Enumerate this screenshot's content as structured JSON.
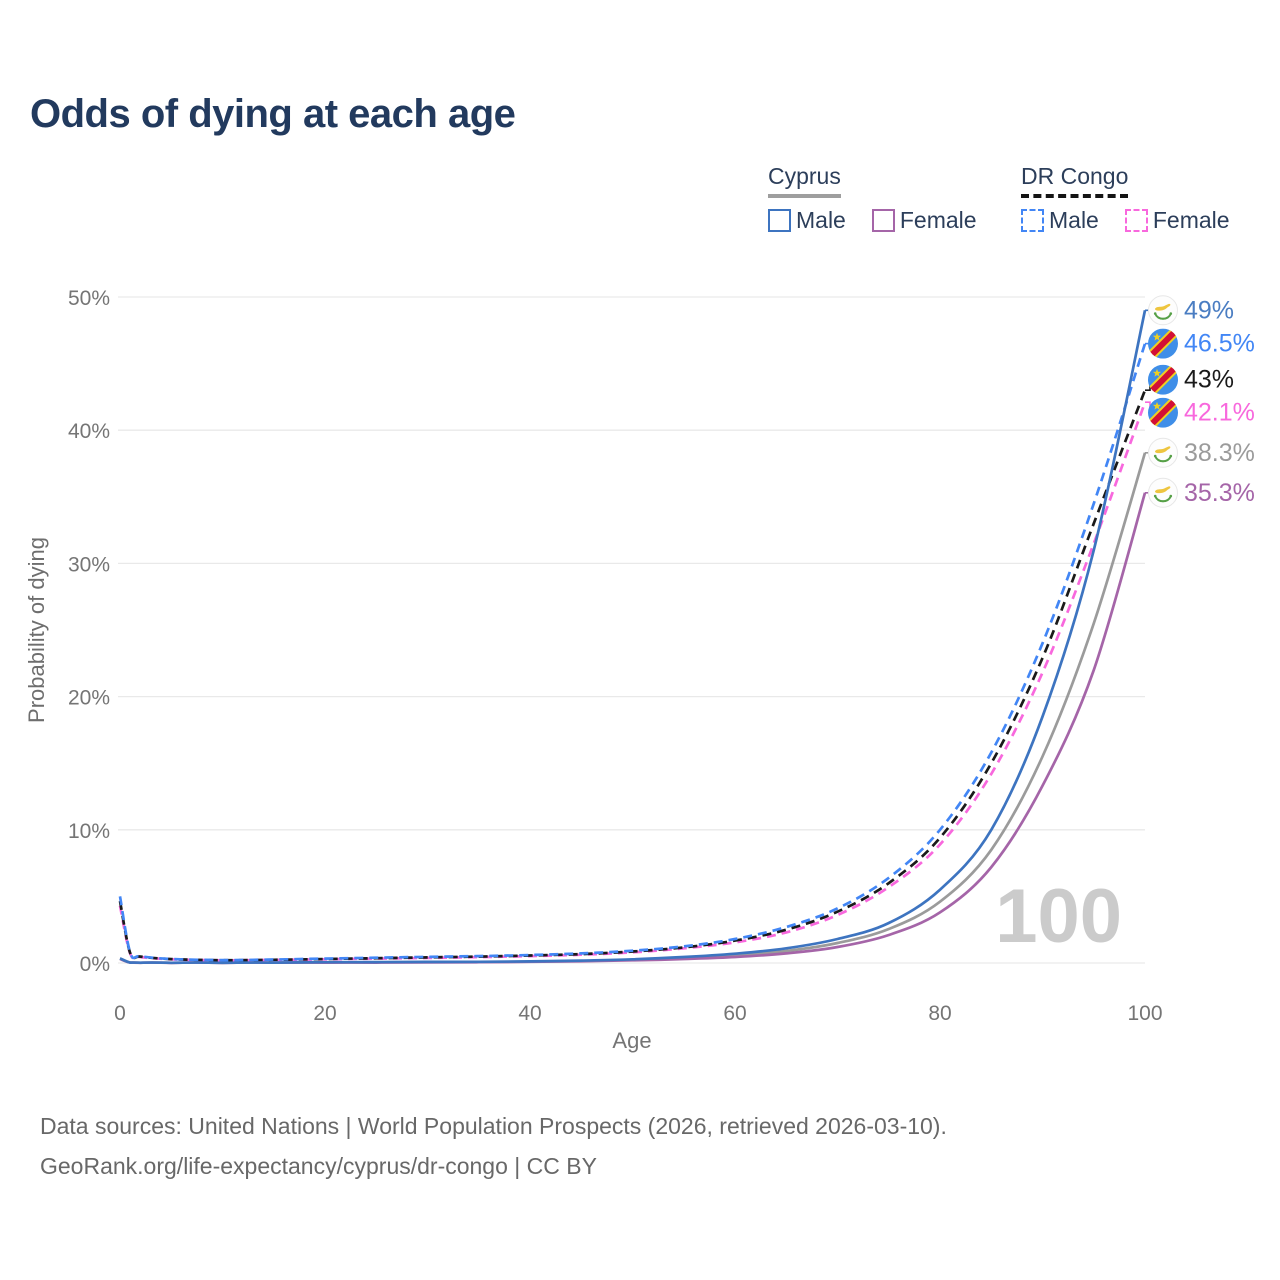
{
  "title": "Odds of dying at each age",
  "watermark": "100",
  "legend": {
    "groups": [
      {
        "label": "Cyprus",
        "style": "solid",
        "items": [
          {
            "label": "Male",
            "color": "#3d74c0"
          },
          {
            "label": "Female",
            "color": "#a565a8"
          }
        ]
      },
      {
        "label": "DR Congo",
        "style": "dashed",
        "items": [
          {
            "label": "Male",
            "color": "#4286f5"
          },
          {
            "label": "Female",
            "color": "#f868dd"
          }
        ]
      }
    ]
  },
  "footer": {
    "line1": "Data sources: United Nations | World Population Prospects (2026, retrieved 2026-03-10).",
    "line2": "GeoRank.org/life-expectancy/cyprus/dr-congo | CC BY"
  },
  "chart_data": {
    "type": "line",
    "title": "Odds of dying at each age",
    "xlabel": "Age",
    "ylabel": "Probability of dying",
    "xlim": [
      0,
      100
    ],
    "ylim": [
      0,
      50
    ],
    "grid": "horizontal",
    "legend_position": "top-right",
    "x_ticks": [
      0,
      20,
      40,
      60,
      80,
      100
    ],
    "x_tick_labels": [
      "0",
      "20",
      "40",
      "60",
      "80",
      "100"
    ],
    "y_ticks": [
      0,
      10,
      20,
      30,
      40,
      50
    ],
    "y_tick_labels": [
      "0%",
      "10%",
      "20%",
      "30%",
      "40%",
      "50%"
    ],
    "ages": [
      0,
      1,
      2,
      5,
      10,
      15,
      20,
      25,
      30,
      35,
      40,
      45,
      50,
      55,
      60,
      65,
      70,
      75,
      80,
      85,
      90,
      95,
      100
    ],
    "series": [
      {
        "name": "Cyprus Both sexes",
        "country": "Cyprus",
        "sex": "Both",
        "flag": "cyprus",
        "color": "#9b9b9b",
        "label_color": "#9b9b9b",
        "dash": false,
        "end_label": "38.3%",
        "values": [
          0.33,
          0.028,
          0.018,
          0.012,
          0.012,
          0.025,
          0.045,
          0.05,
          0.06,
          0.075,
          0.1,
          0.15,
          0.24,
          0.37,
          0.57,
          0.9,
          1.5,
          2.55,
          4.6,
          8.5,
          15.5,
          25.5,
          38.3
        ]
      },
      {
        "name": "Cyprus Female",
        "country": "Cyprus",
        "sex": "Female",
        "flag": "cyprus",
        "color": "#a565a8",
        "label_color": "#a565a8",
        "dash": false,
        "end_label": "35.3%",
        "values": [
          0.3,
          0.025,
          0.015,
          0.01,
          0.01,
          0.02,
          0.03,
          0.033,
          0.042,
          0.06,
          0.09,
          0.13,
          0.2,
          0.3,
          0.45,
          0.72,
          1.2,
          2.1,
          3.8,
          7.2,
          13.3,
          22.0,
          35.3
        ]
      },
      {
        "name": "DR Congo Female",
        "country": "DR Congo",
        "sex": "Female",
        "flag": "drc",
        "color": "#f868dd",
        "label_color": "#f868dd",
        "dash": true,
        "end_label": "42.1%",
        "values": [
          4.3,
          0.68,
          0.45,
          0.28,
          0.2,
          0.23,
          0.28,
          0.33,
          0.38,
          0.44,
          0.52,
          0.62,
          0.8,
          1.1,
          1.55,
          2.3,
          3.6,
          5.7,
          8.9,
          14.2,
          21.8,
          31.5,
          42.1
        ]
      },
      {
        "name": "DR Congo Both sexes",
        "country": "DR Congo",
        "sex": "Both",
        "flag": "drc",
        "color": "#1a1a1a",
        "label_color": "#1a1a1a",
        "dash": true,
        "end_label": "43%",
        "values": [
          4.65,
          0.72,
          0.48,
          0.29,
          0.21,
          0.24,
          0.3,
          0.36,
          0.42,
          0.48,
          0.56,
          0.67,
          0.86,
          1.17,
          1.68,
          2.5,
          3.85,
          6.0,
          9.4,
          15.0,
          22.9,
          33.0,
          43.0
        ]
      },
      {
        "name": "DR Congo Male",
        "country": "DR Congo",
        "sex": "Male",
        "flag": "drc",
        "color": "#4286f5",
        "label_color": "#4286f5",
        "dash": true,
        "end_label": "46.5%",
        "values": [
          5.0,
          0.75,
          0.5,
          0.3,
          0.22,
          0.26,
          0.33,
          0.4,
          0.46,
          0.52,
          0.6,
          0.72,
          0.92,
          1.25,
          1.8,
          2.7,
          4.1,
          6.4,
          10.0,
          15.8,
          24.0,
          34.5,
          46.5
        ]
      },
      {
        "name": "Cyprus Male",
        "country": "Cyprus",
        "sex": "Male",
        "flag": "cyprus",
        "color": "#3d74c0",
        "label_color": "#4a7dc2",
        "dash": false,
        "end_label": "49%",
        "values": [
          0.35,
          0.03,
          0.02,
          0.012,
          0.012,
          0.03,
          0.06,
          0.07,
          0.08,
          0.09,
          0.12,
          0.18,
          0.28,
          0.45,
          0.7,
          1.1,
          1.8,
          3.0,
          5.5,
          10.0,
          18.5,
          31.0,
          49.0
        ]
      }
    ]
  }
}
